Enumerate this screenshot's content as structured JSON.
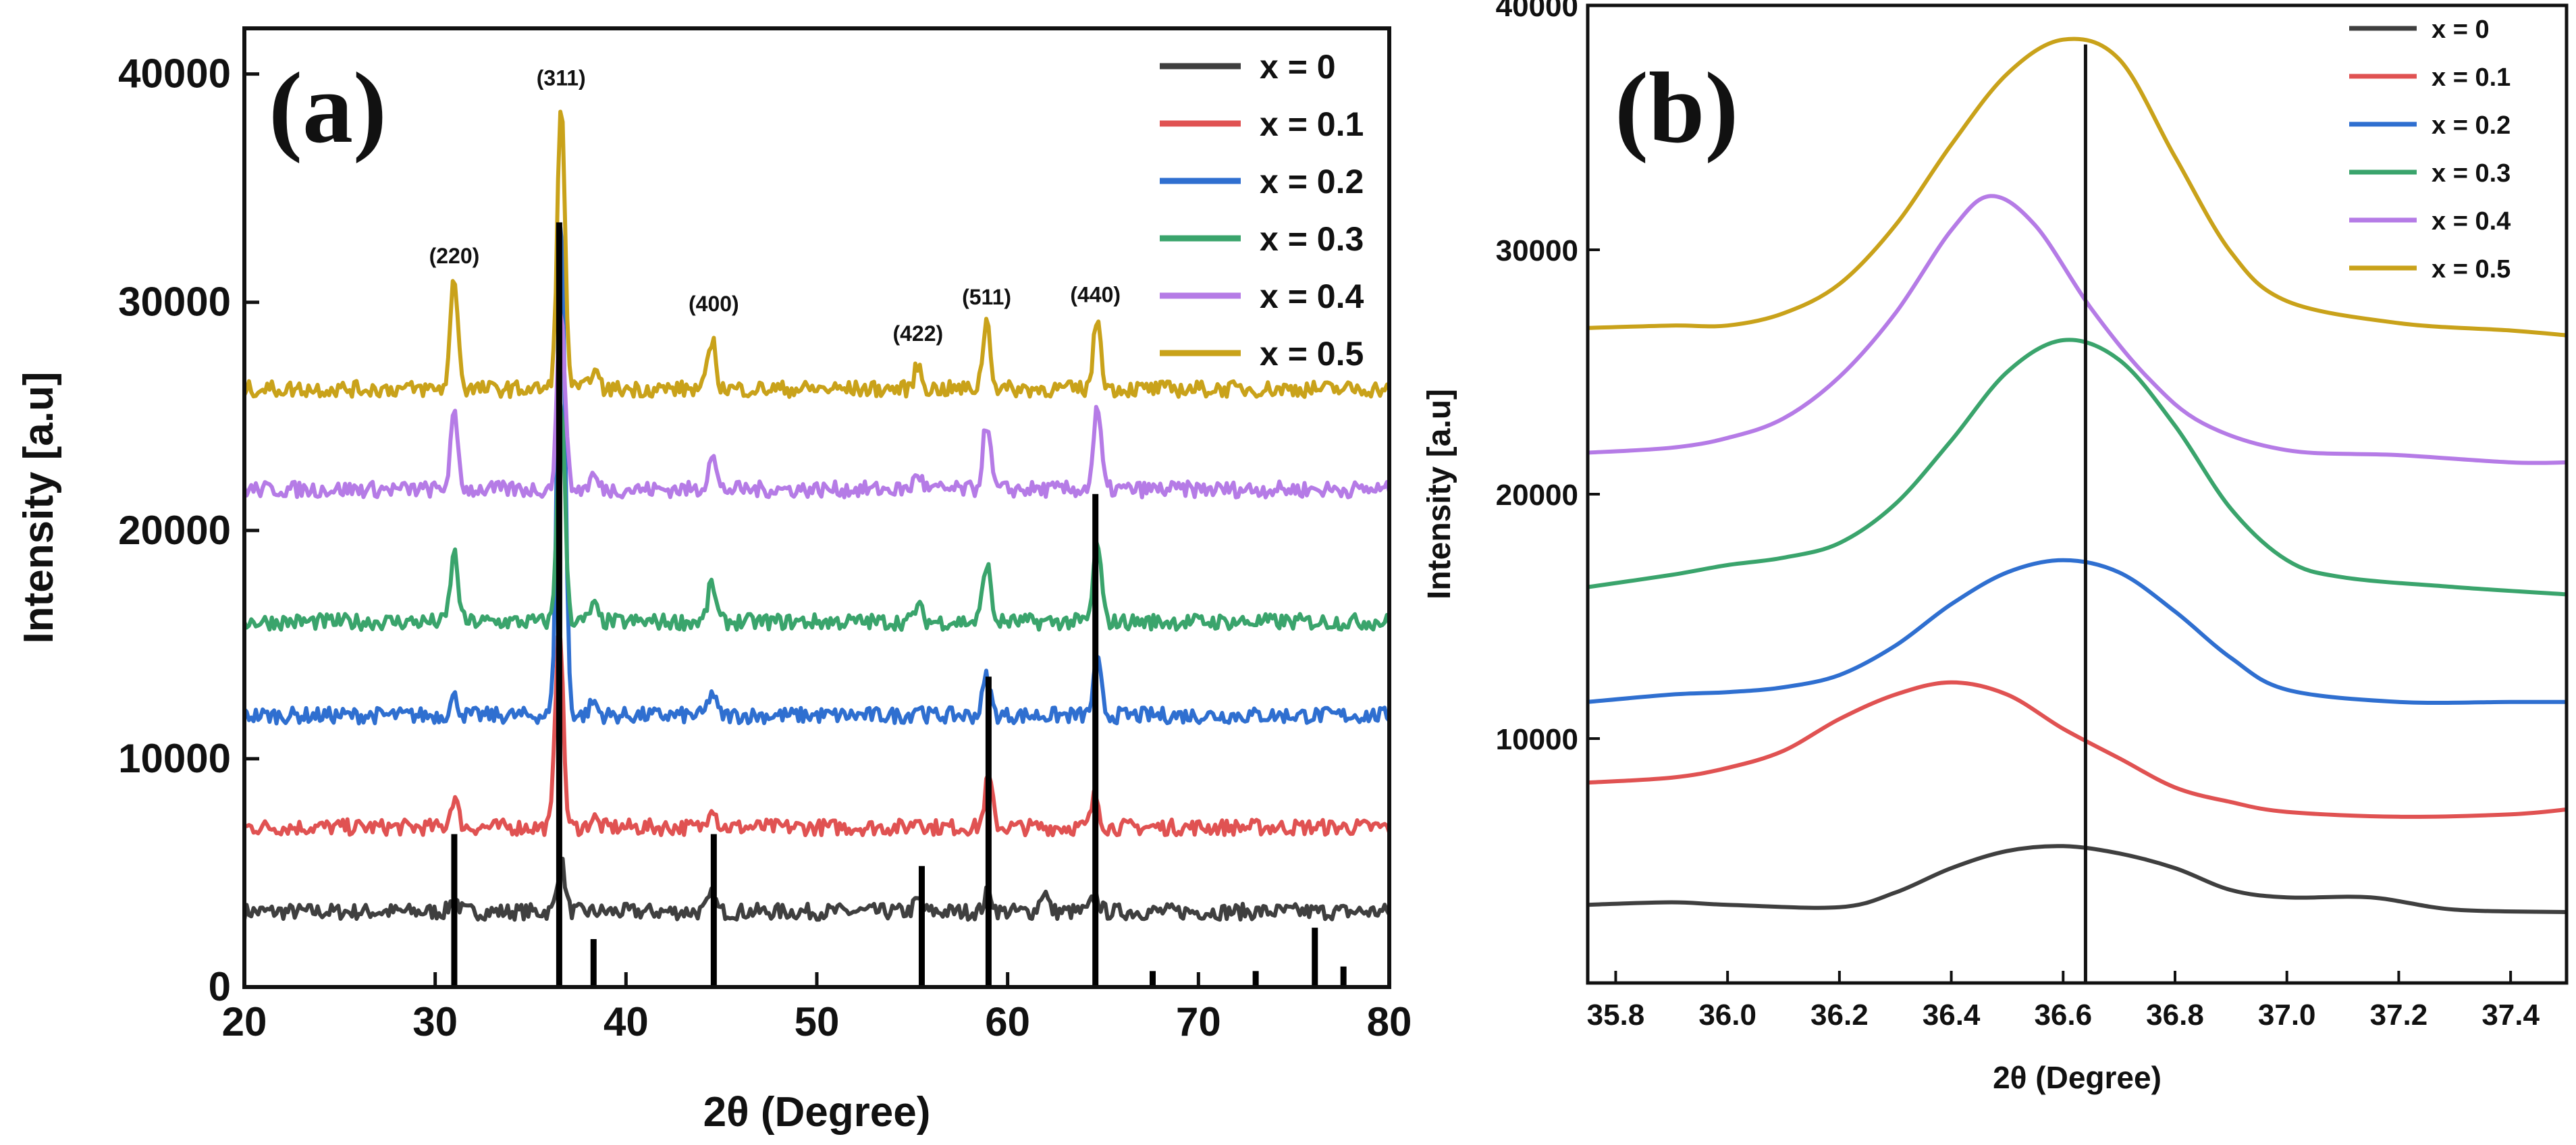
{
  "chart_data": [
    {
      "panel_label": "(a)",
      "type": "line",
      "xlabel": "2θ (Degree)",
      "ylabel": "Intensity [a.u]",
      "xlim": [
        20,
        80
      ],
      "ylim": [
        0,
        42000
      ],
      "xticks": [
        "20",
        "30",
        "40",
        "50",
        "60",
        "70",
        "80"
      ],
      "yticks": [
        "0",
        "10000",
        "20000",
        "30000",
        "40000"
      ],
      "legend_position": "top-right",
      "series": [
        {
          "name": "x = 0",
          "color": "#3f3f3f",
          "baseline": 3300,
          "peaks": [
            [
              31.0,
              600
            ],
            [
              36.6,
              2200
            ],
            [
              44.5,
              700
            ],
            [
              55.3,
              500
            ],
            [
              59.0,
              900
            ],
            [
              61.9,
              900
            ],
            [
              64.6,
              700
            ]
          ]
        },
        {
          "name": "x = 0.1",
          "color": "#e05252",
          "baseline": 7000,
          "peaks": [
            [
              31.0,
              1300
            ],
            [
              36.5,
              9000
            ],
            [
              38.3,
              400
            ],
            [
              44.5,
              1000
            ],
            [
              55.3,
              400
            ],
            [
              59.0,
              2200
            ],
            [
              64.6,
              1400
            ]
          ]
        },
        {
          "name": "x = 0.2",
          "color": "#2f6fd0",
          "baseline": 11900,
          "peaks": [
            [
              31.0,
              800
            ],
            [
              36.6,
              22000
            ],
            [
              38.3,
              600
            ],
            [
              44.5,
              1000
            ],
            [
              55.3,
              400
            ],
            [
              58.9,
              1700
            ],
            [
              64.7,
              2400
            ]
          ]
        },
        {
          "name": "x = 0.3",
          "color": "#3aa46c",
          "baseline": 16000,
          "peaks": [
            [
              31.0,
              3000
            ],
            [
              36.6,
              9500
            ],
            [
              38.3,
              700
            ],
            [
              44.5,
              1700
            ],
            [
              55.3,
              700
            ],
            [
              58.9,
              2600
            ],
            [
              64.7,
              3500
            ]
          ]
        },
        {
          "name": "x = 0.4",
          "color": "#b57be6",
          "baseline": 21800,
          "peaks": [
            [
              31.0,
              3200
            ],
            [
              36.6,
              8000
            ],
            [
              38.3,
              600
            ],
            [
              44.5,
              1600
            ],
            [
              55.3,
              700
            ],
            [
              58.9,
              2900
            ],
            [
              64.7,
              3500
            ]
          ]
        },
        {
          "name": "x = 0.5",
          "color": "#c9a21a",
          "baseline": 26200,
          "peaks": [
            [
              31.0,
              4900
            ],
            [
              36.6,
              12400
            ],
            [
              38.3,
              900
            ],
            [
              44.5,
              2200
            ],
            [
              55.3,
              1000
            ],
            [
              58.9,
              3000
            ],
            [
              64.7,
              3100
            ]
          ]
        }
      ],
      "reference_sticks": [
        {
          "x": 31.0,
          "y": 6700
        },
        {
          "x": 36.5,
          "y": 33500
        },
        {
          "x": 38.3,
          "y": 2100
        },
        {
          "x": 44.6,
          "y": 6700
        },
        {
          "x": 55.5,
          "y": 5300
        },
        {
          "x": 59.0,
          "y": 13600
        },
        {
          "x": 64.6,
          "y": 21600
        },
        {
          "x": 67.6,
          "y": 700
        },
        {
          "x": 73.0,
          "y": 700
        },
        {
          "x": 76.1,
          "y": 2600
        },
        {
          "x": 77.6,
          "y": 900
        }
      ],
      "annotations": [
        {
          "text": "(220)",
          "x": 31.0,
          "y": 31700
        },
        {
          "text": "(311)",
          "x": 36.6,
          "y": 39500
        },
        {
          "text": "(400)",
          "x": 44.6,
          "y": 29600
        },
        {
          "text": "(422)",
          "x": 55.3,
          "y": 28300
        },
        {
          "text": "(511)",
          "x": 58.9,
          "y": 29900
        },
        {
          "text": "(440)",
          "x": 64.6,
          "y": 30000
        }
      ]
    },
    {
      "panel_label": "(b)",
      "type": "line",
      "xlabel": "2θ (Degree)",
      "ylabel": "Intensity [a.u]",
      "xlim": [
        35.75,
        37.5
      ],
      "ylim": [
        0,
        40000
      ],
      "xticks": [
        "35.8",
        "36.0",
        "36.2",
        "36.4",
        "36.6",
        "36.8",
        "37.0",
        "37.2",
        "37.4"
      ],
      "yticks": [
        "10000",
        "20000",
        "30000",
        "40000"
      ],
      "legend_position": "top-right",
      "reference_line_x": 36.64,
      "series": [
        {
          "name": "x = 0",
          "color": "#3f3f3f",
          "points": [
            [
              35.75,
              3200
            ],
            [
              35.9,
              3300
            ],
            [
              36.0,
              3200
            ],
            [
              36.2,
              3100
            ],
            [
              36.3,
              3700
            ],
            [
              36.4,
              4700
            ],
            [
              36.5,
              5400
            ],
            [
              36.6,
              5600
            ],
            [
              36.7,
              5300
            ],
            [
              36.8,
              4700
            ],
            [
              36.9,
              3800
            ],
            [
              37.0,
              3500
            ],
            [
              37.15,
              3500
            ],
            [
              37.3,
              3000
            ],
            [
              37.5,
              2900
            ]
          ]
        },
        {
          "name": "x = 0.1",
          "color": "#e05252",
          "points": [
            [
              35.75,
              8200
            ],
            [
              35.9,
              8400
            ],
            [
              36.0,
              8800
            ],
            [
              36.1,
              9500
            ],
            [
              36.2,
              10800
            ],
            [
              36.3,
              11800
            ],
            [
              36.4,
              12300
            ],
            [
              36.5,
              11800
            ],
            [
              36.6,
              10400
            ],
            [
              36.7,
              9200
            ],
            [
              36.8,
              8000
            ],
            [
              36.9,
              7400
            ],
            [
              37.0,
              7000
            ],
            [
              37.2,
              6800
            ],
            [
              37.4,
              6900
            ],
            [
              37.5,
              7100
            ]
          ]
        },
        {
          "name": "x = 0.2",
          "color": "#2f6fd0",
          "points": [
            [
              35.75,
              11500
            ],
            [
              35.9,
              11800
            ],
            [
              36.0,
              11900
            ],
            [
              36.1,
              12100
            ],
            [
              36.2,
              12600
            ],
            [
              36.3,
              13800
            ],
            [
              36.4,
              15500
            ],
            [
              36.5,
              16800
            ],
            [
              36.6,
              17300
            ],
            [
              36.7,
              16800
            ],
            [
              36.8,
              15200
            ],
            [
              36.9,
              13300
            ],
            [
              37.0,
              12000
            ],
            [
              37.2,
              11500
            ],
            [
              37.4,
              11500
            ],
            [
              37.5,
              11500
            ]
          ]
        },
        {
          "name": "x = 0.3",
          "color": "#3aa46c",
          "points": [
            [
              35.75,
              16200
            ],
            [
              35.9,
              16700
            ],
            [
              36.0,
              17100
            ],
            [
              36.1,
              17400
            ],
            [
              36.2,
              18000
            ],
            [
              36.3,
              19600
            ],
            [
              36.4,
              22200
            ],
            [
              36.5,
              25000
            ],
            [
              36.6,
              26300
            ],
            [
              36.7,
              25500
            ],
            [
              36.8,
              22800
            ],
            [
              36.9,
              19400
            ],
            [
              37.0,
              17300
            ],
            [
              37.1,
              16600
            ],
            [
              37.3,
              16200
            ],
            [
              37.5,
              15900
            ]
          ]
        },
        {
          "name": "x = 0.4",
          "color": "#b57be6",
          "points": [
            [
              35.75,
              21700
            ],
            [
              35.9,
              21900
            ],
            [
              36.0,
              22300
            ],
            [
              36.1,
              23100
            ],
            [
              36.2,
              24800
            ],
            [
              36.3,
              27400
            ],
            [
              36.4,
              30800
            ],
            [
              36.47,
              32200
            ],
            [
              36.55,
              31000
            ],
            [
              36.65,
              27600
            ],
            [
              36.75,
              24800
            ],
            [
              36.85,
              22900
            ],
            [
              37.0,
              21800
            ],
            [
              37.2,
              21600
            ],
            [
              37.4,
              21300
            ],
            [
              37.5,
              21300
            ]
          ]
        },
        {
          "name": "x = 0.5",
          "color": "#c9a21a",
          "points": [
            [
              35.75,
              26800
            ],
            [
              35.9,
              26900
            ],
            [
              36.0,
              26900
            ],
            [
              36.1,
              27400
            ],
            [
              36.2,
              28600
            ],
            [
              36.3,
              31000
            ],
            [
              36.4,
              34300
            ],
            [
              36.5,
              37200
            ],
            [
              36.6,
              38600
            ],
            [
              36.7,
              37800
            ],
            [
              36.8,
              33800
            ],
            [
              36.9,
              29900
            ],
            [
              37.0,
              27900
            ],
            [
              37.2,
              27000
            ],
            [
              37.4,
              26700
            ],
            [
              37.5,
              26500
            ]
          ]
        }
      ]
    }
  ]
}
